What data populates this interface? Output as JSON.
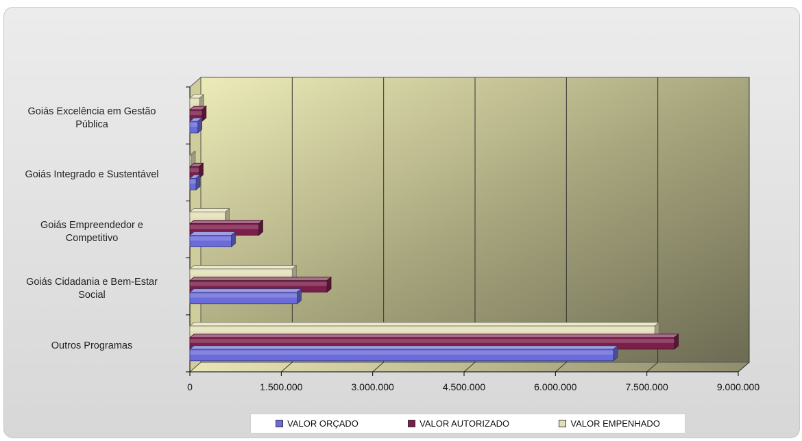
{
  "chart_data": {
    "type": "bar",
    "orientation": "horizontal",
    "style": "3d-clustered",
    "categories": [
      "Outros Programas",
      "Goiás Cidadania e Bem-Estar Social",
      "Goiás Empreendedor e Competitivo",
      "Goiás Integrado e Sustentável",
      "Goiás Excelência em Gestão Pública"
    ],
    "series": [
      {
        "name": "VALOR ORÇADO",
        "color": "#6b6bd9",
        "values": [
          6950000,
          1760000,
          680000,
          100000,
          130000
        ]
      },
      {
        "name": "VALOR AUTORIZADO",
        "color": "#7a1f4a",
        "values": [
          7950000,
          2250000,
          1130000,
          150000,
          200000
        ]
      },
      {
        "name": "VALOR EMPENHADO",
        "color": "#e2e0b8",
        "values": [
          7630000,
          1680000,
          580000,
          20000,
          160000
        ]
      }
    ],
    "xlim": [
      0,
      9000000
    ],
    "xticks": [
      "0",
      "1.500.000",
      "3.000.000",
      "4.500.000",
      "6.000.000",
      "7.500.000",
      "9.000.000"
    ],
    "grid": true,
    "legend_position": "bottom",
    "title": "",
    "xlabel": "",
    "ylabel": ""
  },
  "category_labels": [
    [
      "Outros Programas"
    ],
    [
      "Goiás Cidadania e Bem-Estar",
      "Social"
    ],
    [
      "Goiás Empreendedor e",
      "Competitivo"
    ],
    [
      "Goiás Integrado e Sustentável"
    ],
    [
      "Goiás Excelência em Gestão",
      "Pública"
    ]
  ]
}
